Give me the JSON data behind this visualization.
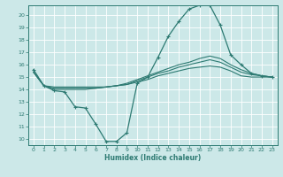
{
  "bg_color": "#cce8e8",
  "grid_color": "#ffffff",
  "line_color": "#2d7a72",
  "xlabel": "Humidex (Indice chaleur)",
  "xlim": [
    -0.5,
    23.5
  ],
  "ylim": [
    9.5,
    20.8
  ],
  "yticks": [
    10,
    11,
    12,
    13,
    14,
    15,
    16,
    17,
    18,
    19,
    20
  ],
  "xticks": [
    0,
    1,
    2,
    3,
    4,
    5,
    6,
    7,
    8,
    9,
    10,
    11,
    12,
    13,
    14,
    15,
    16,
    17,
    18,
    19,
    20,
    21,
    22,
    23
  ],
  "line1_x": [
    0,
    1,
    2,
    3,
    4,
    5,
    6,
    7,
    8,
    9,
    10,
    11,
    12,
    13,
    14,
    15,
    16,
    17,
    18,
    19,
    20,
    21,
    22,
    23
  ],
  "line1_y": [
    15.6,
    14.3,
    13.9,
    13.8,
    12.6,
    12.5,
    11.2,
    9.8,
    9.8,
    10.5,
    14.5,
    15.0,
    16.6,
    18.3,
    19.5,
    20.5,
    20.8,
    20.8,
    19.2,
    16.8,
    16.0,
    15.3,
    15.1,
    15.0
  ],
  "line2_x": [
    0,
    1,
    2,
    3,
    4,
    5,
    6,
    7,
    8,
    9,
    10,
    11,
    12,
    13,
    14,
    15,
    16,
    17,
    18,
    19,
    20,
    21,
    22,
    23
  ],
  "line2_y": [
    15.4,
    14.3,
    14.2,
    14.2,
    14.2,
    14.2,
    14.2,
    14.2,
    14.3,
    14.4,
    14.6,
    14.8,
    15.1,
    15.3,
    15.5,
    15.7,
    15.8,
    15.9,
    15.8,
    15.5,
    15.1,
    15.0,
    15.0,
    15.0
  ],
  "line3_x": [
    0,
    1,
    2,
    3,
    4,
    5,
    6,
    7,
    8,
    9,
    10,
    11,
    12,
    13,
    14,
    15,
    16,
    17,
    18,
    19,
    20,
    21,
    22,
    23
  ],
  "line3_y": [
    15.4,
    14.3,
    14.1,
    14.1,
    14.1,
    14.1,
    14.1,
    14.2,
    14.3,
    14.4,
    14.7,
    15.0,
    15.3,
    15.5,
    15.8,
    16.0,
    16.2,
    16.4,
    16.2,
    15.8,
    15.4,
    15.2,
    15.1,
    15.0
  ],
  "line4_x": [
    0,
    1,
    2,
    3,
    4,
    5,
    6,
    7,
    8,
    9,
    10,
    11,
    12,
    13,
    14,
    15,
    16,
    17,
    18,
    19,
    20,
    21,
    22,
    23
  ],
  "line4_y": [
    15.4,
    14.3,
    14.0,
    14.0,
    14.0,
    14.0,
    14.1,
    14.2,
    14.3,
    14.5,
    14.8,
    15.1,
    15.4,
    15.7,
    16.0,
    16.2,
    16.5,
    16.7,
    16.5,
    16.0,
    15.6,
    15.3,
    15.1,
    15.0
  ]
}
